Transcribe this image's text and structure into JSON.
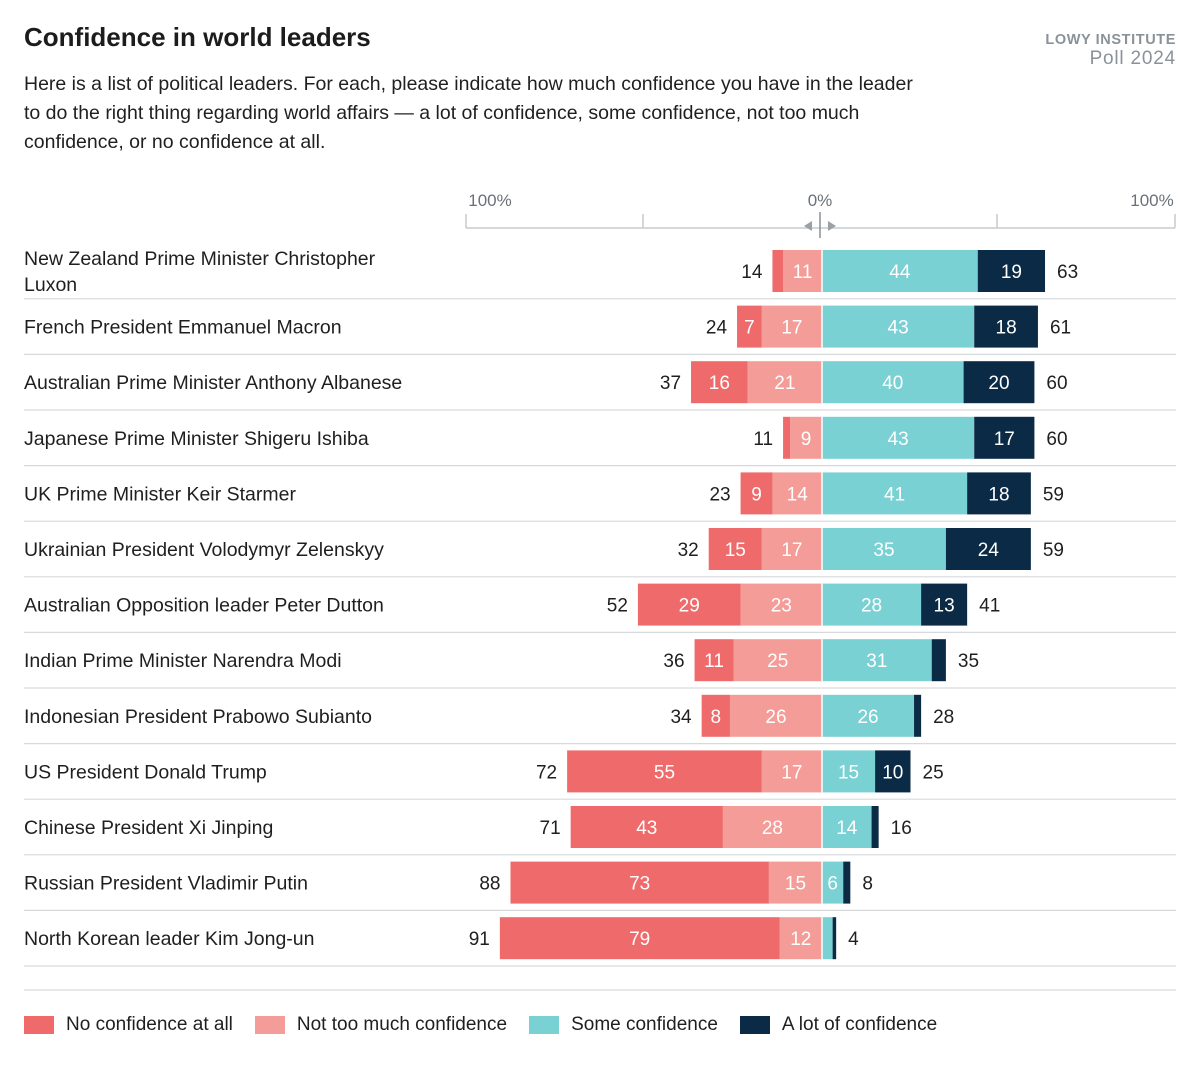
{
  "header": {
    "title": "Confidence in world leaders",
    "subtitle": "Here is a list of political leaders. For each, please indicate how much confidence you have in the leader to do the right thing regarding world affairs — a lot of confidence, some confidence, not too much confidence, or no confidence at all.",
    "brand_line1": "LOWY INSTITUTE",
    "brand_line2": "Poll 2024"
  },
  "chart_data": {
    "type": "bar",
    "orientation": "horizontal-diverging",
    "axis": {
      "left_label": "100%",
      "center_label": "0%",
      "right_label": "100%",
      "range": [
        -100,
        100
      ]
    },
    "categories": [
      "New Zealand Prime Minister Christopher Luxon",
      "French President Emmanuel Macron",
      "Australian Prime Minister Anthony Albanese",
      "Japanese Prime Minister Shigeru Ishiba",
      "UK Prime Minister Keir Starmer",
      "Ukrainian President Volodymyr Zelenskyy",
      "Australian Opposition leader Peter Dutton",
      "Indian Prime Minister Narendra Modi",
      "Indonesian President Prabowo Subianto",
      "US President Donald Trump",
      "Chinese President Xi Jinping",
      "Russian President Vladimir Putin",
      "North Korean leader Kim Jong-un"
    ],
    "series": [
      {
        "name": "No confidence at all",
        "color": "#ef6b6b",
        "side": "negative",
        "values": [
          3,
          7,
          16,
          2,
          9,
          15,
          29,
          11,
          8,
          55,
          43,
          73,
          79
        ]
      },
      {
        "name": "Not too much confidence",
        "color": "#f49c97",
        "side": "negative",
        "values": [
          11,
          17,
          21,
          9,
          14,
          17,
          23,
          25,
          26,
          17,
          28,
          15,
          12
        ]
      },
      {
        "name": "Some confidence",
        "color": "#7ad1d3",
        "side": "positive",
        "values": [
          44,
          43,
          40,
          43,
          41,
          35,
          28,
          31,
          26,
          15,
          14,
          6,
          3
        ]
      },
      {
        "name": "A lot of confidence",
        "color": "#0b2a45",
        "side": "positive",
        "values": [
          19,
          18,
          20,
          17,
          18,
          24,
          13,
          4,
          2,
          10,
          2,
          2,
          1
        ]
      }
    ],
    "shown_labels": {
      "No confidence at all": [
        "",
        "7",
        "16",
        "",
        "9",
        "15",
        "29",
        "11",
        "8",
        "55",
        "43",
        "73",
        "79"
      ],
      "Not too much confidence": [
        "11",
        "17",
        "21",
        "9",
        "14",
        "17",
        "23",
        "25",
        "26",
        "17",
        "28",
        "15",
        "12"
      ],
      "Some confidence": [
        "44",
        "43",
        "40",
        "43",
        "41",
        "35",
        "28",
        "31",
        "26",
        "15",
        "14",
        "6",
        ""
      ],
      "A lot of confidence": [
        "19",
        "18",
        "20",
        "17",
        "18",
        "24",
        "13",
        "",
        "",
        "10",
        "",
        "",
        ""
      ]
    },
    "negative_totals": [
      14,
      24,
      37,
      11,
      23,
      32,
      52,
      36,
      34,
      72,
      71,
      88,
      91
    ],
    "positive_totals": [
      63,
      61,
      60,
      60,
      59,
      59,
      41,
      35,
      28,
      25,
      16,
      8,
      4
    ],
    "legend_position": "bottom"
  }
}
